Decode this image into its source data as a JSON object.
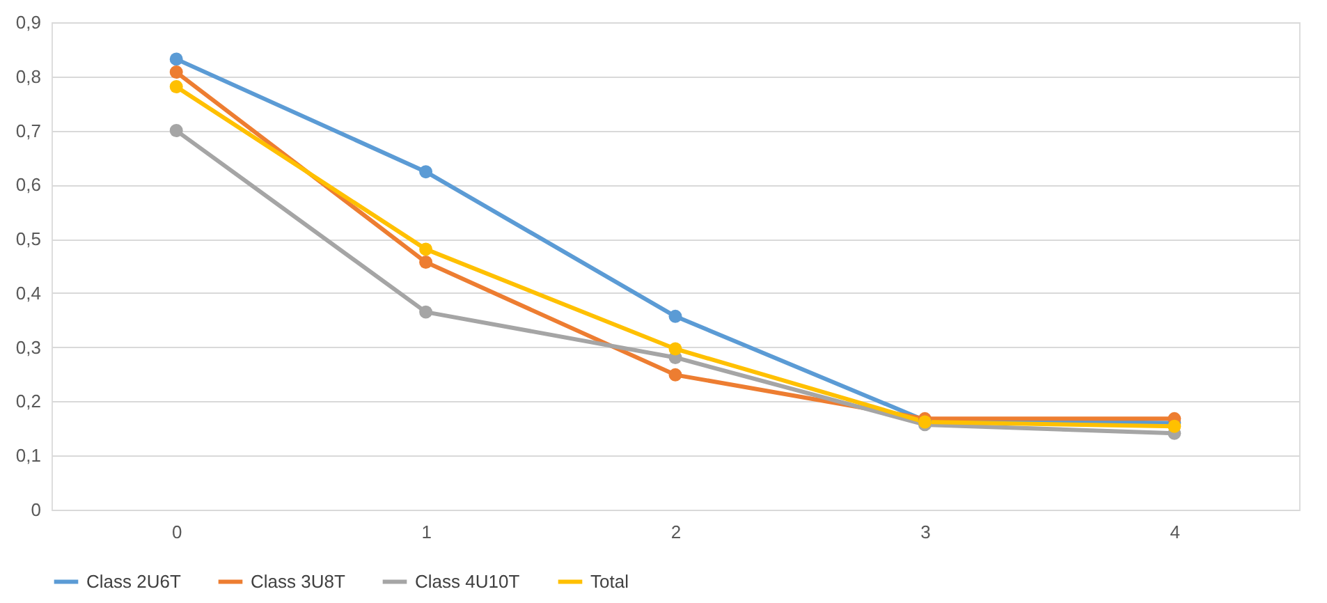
{
  "chart_data": {
    "type": "line",
    "categories": [
      "0",
      "1",
      "2",
      "3",
      "4"
    ],
    "series": [
      {
        "name": "Class 2U6T",
        "color": "#5b9bd5",
        "values": [
          0.832,
          0.624,
          0.357,
          0.165,
          0.16
        ]
      },
      {
        "name": "Class 3U8T",
        "color": "#ed7d31",
        "values": [
          0.808,
          0.457,
          0.249,
          0.168,
          0.168
        ]
      },
      {
        "name": "Class 4U10T",
        "color": "#a5a5a5",
        "values": [
          0.7,
          0.365,
          0.281,
          0.157,
          0.141
        ]
      },
      {
        "name": "Total",
        "color": "#ffc000",
        "values": [
          0.781,
          0.481,
          0.297,
          0.162,
          0.154
        ]
      }
    ],
    "ylim": [
      0,
      0.9
    ],
    "yticks": [
      0,
      {
        "value": 0.1,
        "label": "0,1"
      },
      {
        "value": 0.2,
        "label": "0,2"
      },
      {
        "value": 0.3,
        "label": "0,3"
      },
      {
        "value": 0.4,
        "label": "0,4"
      },
      {
        "value": 0.5,
        "label": "0,5"
      },
      {
        "value": 0.6,
        "label": "0,6"
      },
      {
        "value": 0.7,
        "label": "0,7"
      },
      {
        "value": 0.8,
        "label": "0,8"
      },
      {
        "value": 0.9,
        "label": "0,9"
      }
    ],
    "grid": "y",
    "legend": "bottom",
    "marker": "circle",
    "line_style": "solid"
  }
}
